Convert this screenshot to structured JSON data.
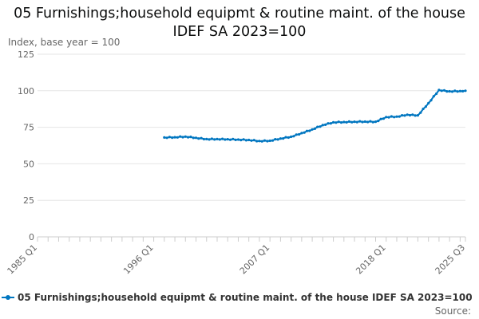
{
  "title": "05 Furnishings;household equipmt & routine maint. of the house IDEF SA 2023=100",
  "source_label": "Source:",
  "colors": {
    "series": "#0076c0",
    "grid": "#e6e6e6",
    "text": "#666666"
  },
  "chart_data": {
    "type": "line",
    "title": "05 Furnishings;household equipmt & routine maint. of the house IDEF SA 2023=100",
    "ylabel": "Index, base year = 100",
    "xlabel": "",
    "ylim": [
      0,
      125
    ],
    "yticks": [
      0,
      25,
      50,
      75,
      100,
      125
    ],
    "x_tick_labels": [
      "1985 Q1",
      "1996 Q1",
      "2007 Q1",
      "2018 Q1",
      "2025 Q3"
    ],
    "x_range": [
      "1985 Q1",
      "2025 Q3"
    ],
    "grid": true,
    "legend_position": "bottom",
    "series": [
      {
        "name": "05 Furnishings;household equipmt & routine maint. of the house IDEF SA 2023=100",
        "color": "#0076c0",
        "points": [
          [
            "1997 Q1",
            68.0
          ],
          [
            "1998 Q1",
            68.2
          ],
          [
            "1999 Q1",
            68.6
          ],
          [
            "2000 Q1",
            67.8
          ],
          [
            "2001 Q1",
            66.9
          ],
          [
            "2002 Q1",
            66.9
          ],
          [
            "2003 Q1",
            66.8
          ],
          [
            "2004 Q1",
            66.6
          ],
          [
            "2005 Q1",
            66.3
          ],
          [
            "2006 Q1",
            65.6
          ],
          [
            "2007 Q1",
            65.8
          ],
          [
            "2008 Q1",
            67.3
          ],
          [
            "2009 Q1",
            68.5
          ],
          [
            "2010 Q1",
            71.0
          ],
          [
            "2011 Q1",
            73.5
          ],
          [
            "2012 Q1",
            76.5
          ],
          [
            "2013 Q1",
            78.4
          ],
          [
            "2014 Q1",
            78.6
          ],
          [
            "2015 Q1",
            78.8
          ],
          [
            "2016 Q1",
            78.9
          ],
          [
            "2017 Q1",
            78.8
          ],
          [
            "2018 Q1",
            82.0
          ],
          [
            "2019 Q1",
            82.3
          ],
          [
            "2020 Q1",
            83.6
          ],
          [
            "2021 Q1",
            83.2
          ],
          [
            "2022 Q1",
            91.5
          ],
          [
            "2023 Q1",
            100.5
          ],
          [
            "2024 Q1",
            99.6
          ],
          [
            "2025 Q1",
            99.8
          ],
          [
            "2025 Q3",
            100.0
          ]
        ]
      }
    ]
  }
}
